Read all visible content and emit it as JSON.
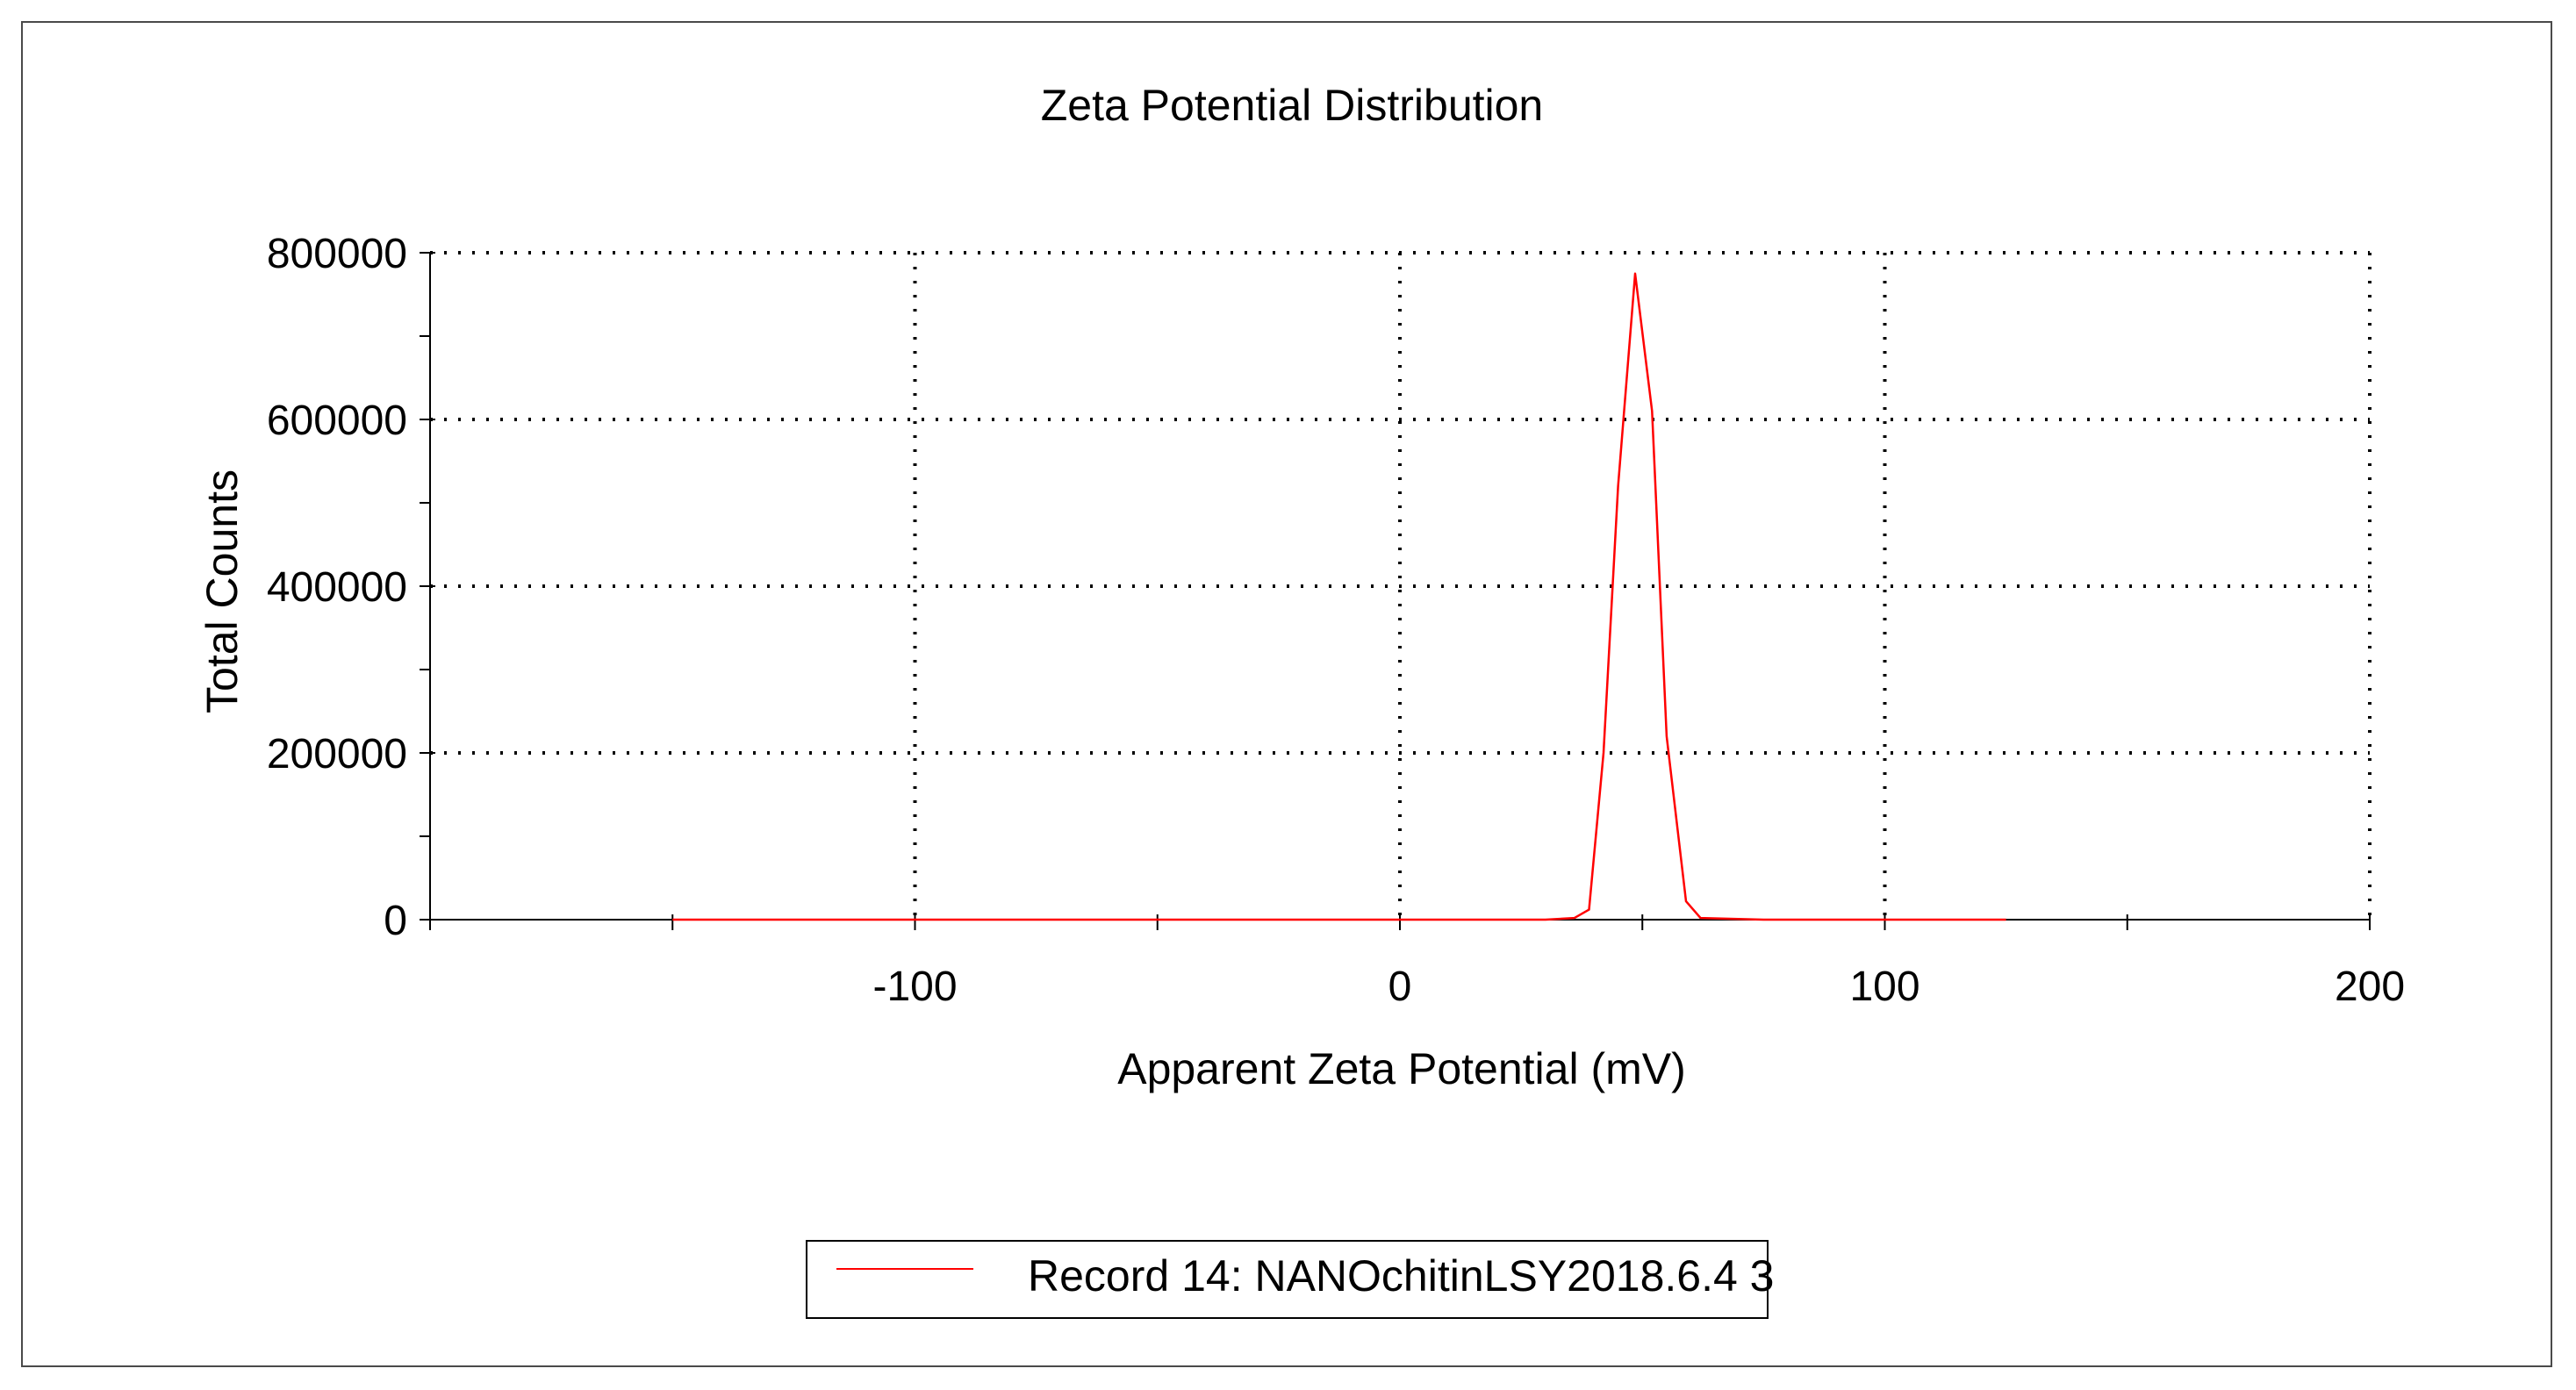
{
  "chart_data": {
    "type": "line",
    "title": "Zeta Potential Distribution",
    "xlabel": "Apparent Zeta Potential (mV)",
    "ylabel": "Total Counts",
    "xlim": [
      -200,
      200
    ],
    "ylim": [
      0,
      800000
    ],
    "x_ticks": [
      -100,
      0,
      100,
      200
    ],
    "x_tick_labels": [
      "-100",
      "0",
      "100",
      "200"
    ],
    "y_ticks": [
      0,
      200000,
      400000,
      600000,
      800000
    ],
    "y_tick_labels": [
      "0",
      "200000",
      "400000",
      "600000",
      "800000"
    ],
    "grid": true,
    "legend_position": "bottom-center",
    "series": [
      {
        "name": "Record 14: NANOchitinLSY2018.6.4 3",
        "color": "#ff0000",
        "x": [
          -150,
          -100,
          -50,
          0,
          30,
          36,
          39,
          42,
          45,
          48.5,
          52,
          55,
          59,
          62,
          75,
          100,
          125
        ],
        "y": [
          0,
          0,
          0,
          0,
          0,
          2000,
          12000,
          200000,
          520000,
          775000,
          610000,
          220000,
          22000,
          2000,
          0,
          0,
          0
        ]
      }
    ]
  }
}
